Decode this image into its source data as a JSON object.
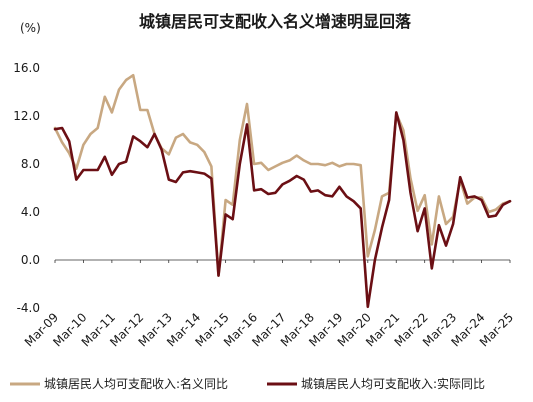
{
  "chart_data": {
    "type": "line",
    "title": "城镇居民可支配收入名义增速明显回落",
    "ylabel": "(%)",
    "ylim": [
      -4.0,
      16.0
    ],
    "yticks": [
      "16.0",
      "12.0",
      "8.0",
      "4.0",
      "0.0",
      "-4.0"
    ],
    "ytick_values": [
      16,
      12,
      8,
      4,
      0,
      -4
    ],
    "xlim": [
      "Mar-09",
      "Mar-25"
    ],
    "xticks": [
      "Mar-09",
      "Mar-10",
      "Mar-11",
      "Mar-12",
      "Mar-13",
      "Mar-14",
      "Mar-15",
      "Mar-16",
      "Mar-17",
      "Mar-18",
      "Mar-19",
      "Mar-20",
      "Mar-21",
      "Mar-22",
      "Mar-23",
      "Mar-24",
      "Mar-25"
    ],
    "grid": false,
    "legend_position": "bottom",
    "x": [
      "Mar-09",
      "Jun-09",
      "Sep-09",
      "Dec-09",
      "Mar-10",
      "Jun-10",
      "Sep-10",
      "Dec-10",
      "Mar-11",
      "Jun-11",
      "Sep-11",
      "Dec-11",
      "Mar-12",
      "Jun-12",
      "Sep-12",
      "Dec-12",
      "Mar-13",
      "Jun-13",
      "Sep-13",
      "Dec-13",
      "Mar-14",
      "Jun-14",
      "Sep-14",
      "Dec-14",
      "Mar-15",
      "Jun-15",
      "Sep-15",
      "Dec-15",
      "Mar-16",
      "Jun-16",
      "Sep-16",
      "Dec-16",
      "Mar-17",
      "Jun-17",
      "Sep-17",
      "Dec-17",
      "Mar-18",
      "Jun-18",
      "Sep-18",
      "Dec-18",
      "Mar-19",
      "Jun-19",
      "Sep-19",
      "Dec-19",
      "Mar-20",
      "Jun-20",
      "Sep-20",
      "Dec-20",
      "Mar-21",
      "Jun-21",
      "Sep-21",
      "Dec-21",
      "Mar-22",
      "Jun-22",
      "Sep-22",
      "Dec-22",
      "Mar-23",
      "Jun-23",
      "Sep-23",
      "Dec-23",
      "Mar-24",
      "Jun-24",
      "Sep-24",
      "Dec-24",
      "Mar-25"
    ],
    "series": [
      {
        "name": "城镇居民人均可支配收入:名义同比",
        "color": "#c8a882",
        "values": [
          11.0,
          9.8,
          8.9,
          7.6,
          9.6,
          10.5,
          11.0,
          13.6,
          12.3,
          14.2,
          15.0,
          15.4,
          12.5,
          12.5,
          10.5,
          9.3,
          8.8,
          10.2,
          10.5,
          9.8,
          9.6,
          9.0,
          7.8,
          -1.3,
          5.0,
          4.6,
          10.0,
          13.0,
          8.0,
          8.1,
          7.5,
          7.8,
          8.1,
          8.3,
          8.7,
          8.3,
          8.0,
          8.0,
          7.9,
          8.1,
          7.8,
          8.0,
          8.0,
          7.9,
          0.3,
          2.5,
          5.3,
          5.6,
          12.2,
          10.8,
          6.8,
          4.1,
          5.4,
          1.3,
          5.3,
          3.0,
          3.6,
          6.7,
          4.7,
          5.2,
          5.2,
          4.0,
          4.2,
          4.7,
          4.9
        ]
      },
      {
        "name": "城镇居民人均可支配收入:实际同比",
        "color": "#6b0f14",
        "values": [
          10.9,
          11.0,
          9.9,
          6.7,
          7.5,
          7.5,
          7.5,
          8.6,
          7.1,
          8.0,
          8.2,
          10.3,
          9.9,
          9.4,
          10.5,
          9.2,
          6.7,
          6.5,
          7.3,
          7.4,
          7.3,
          7.2,
          6.8,
          -1.3,
          3.8,
          3.4,
          8.0,
          11.3,
          5.8,
          5.9,
          5.5,
          5.6,
          6.3,
          6.6,
          7.0,
          6.7,
          5.7,
          5.8,
          5.4,
          5.3,
          6.1,
          5.3,
          4.9,
          4.3,
          -3.9,
          0.0,
          2.7,
          5.0,
          12.3,
          10.0,
          5.6,
          2.4,
          4.3,
          -0.7,
          2.9,
          1.2,
          3.0,
          6.9,
          5.2,
          5.3,
          5.0,
          3.6,
          3.7,
          4.6,
          4.9
        ]
      }
    ]
  }
}
